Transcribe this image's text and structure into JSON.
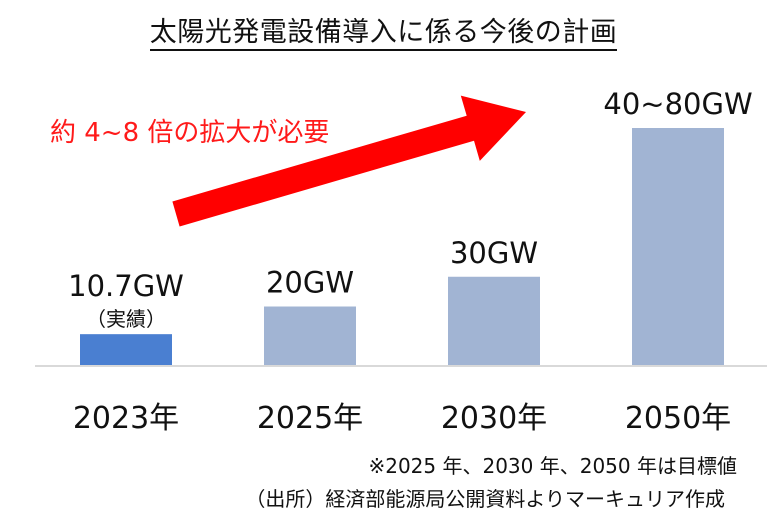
{
  "chart_data": {
    "type": "bar",
    "title": "太陽光発電設備導入に係る今後の計画",
    "categories": [
      "2023年",
      "2025年",
      "2030年",
      "2050年"
    ],
    "values": [
      10.7,
      20,
      30,
      80
    ],
    "value_labels": [
      "10.7GW",
      "20GW",
      "30GW",
      "40~80GW"
    ],
    "sub_labels": [
      "（実績）",
      "",
      "",
      ""
    ],
    "ylim": [
      0,
      80
    ],
    "grid": false,
    "colors": [
      "#4a7fd1",
      "#a1b4d3",
      "#a1b4d3",
      "#a1b4d3"
    ],
    "annotation": "約 4~8 倍の拡大が必要",
    "arrow_color": "#ff0000"
  },
  "footnote": "※2025 年、2030 年、2050 年は目標値",
  "source": "（出所）経済部能源局公開資料よりマーキュリア作成"
}
